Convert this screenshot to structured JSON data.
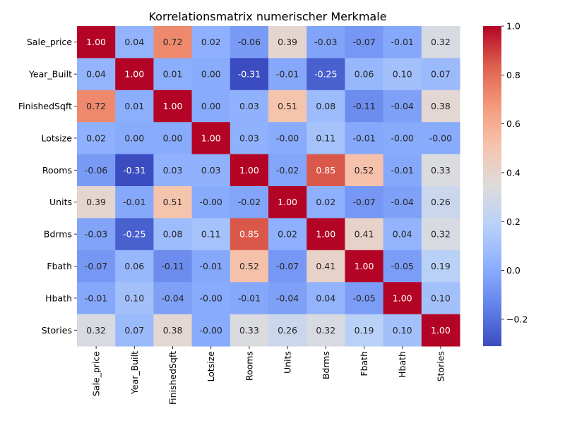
{
  "chart_data": {
    "type": "heatmap",
    "title": "Korrelationsmatrix numerischer Merkmale",
    "rows": [
      "Sale_price",
      "Year_Built",
      "FinishedSqft",
      "Lotsize",
      "Rooms",
      "Units",
      "Bdrms",
      "Fbath",
      "Hbath",
      "Stories"
    ],
    "columns": [
      "Sale_price",
      "Year_Built",
      "FinishedSqft",
      "Lotsize",
      "Rooms",
      "Units",
      "Bdrms",
      "Fbath",
      "Hbath",
      "Stories"
    ],
    "values": [
      [
        1.0,
        0.04,
        0.72,
        0.02,
        -0.06,
        0.39,
        -0.03,
        -0.07,
        -0.01,
        0.32
      ],
      [
        0.04,
        1.0,
        0.01,
        0.0,
        -0.31,
        -0.01,
        -0.25,
        0.06,
        0.1,
        0.07
      ],
      [
        0.72,
        0.01,
        1.0,
        0.0,
        0.03,
        0.51,
        0.08,
        -0.11,
        -0.04,
        0.38
      ],
      [
        0.02,
        0.0,
        0.0,
        1.0,
        0.03,
        -0.0,
        0.11,
        -0.01,
        -0.0,
        -0.0
      ],
      [
        -0.06,
        -0.31,
        0.03,
        0.03,
        1.0,
        -0.02,
        0.85,
        0.52,
        -0.01,
        0.33
      ],
      [
        0.39,
        -0.01,
        0.51,
        -0.0,
        -0.02,
        1.0,
        0.02,
        -0.07,
        -0.04,
        0.26
      ],
      [
        -0.03,
        -0.25,
        0.08,
        0.11,
        0.85,
        0.02,
        1.0,
        0.41,
        0.04,
        0.32
      ],
      [
        -0.07,
        0.06,
        -0.11,
        -0.01,
        0.52,
        -0.07,
        0.41,
        1.0,
        -0.05,
        0.19
      ],
      [
        -0.01,
        0.1,
        -0.04,
        -0.0,
        -0.01,
        -0.04,
        0.04,
        -0.05,
        1.0,
        0.1
      ],
      [
        0.32,
        0.07,
        0.38,
        -0.0,
        0.33,
        0.26,
        0.32,
        0.19,
        0.1,
        1.0
      ]
    ],
    "value_labels": [
      [
        "1.00",
        "0.04",
        "0.72",
        "0.02",
        "-0.06",
        "0.39",
        "-0.03",
        "-0.07",
        "-0.01",
        "0.32"
      ],
      [
        "0.04",
        "1.00",
        "0.01",
        "0.00",
        "-0.31",
        "-0.01",
        "-0.25",
        "0.06",
        "0.10",
        "0.07"
      ],
      [
        "0.72",
        "0.01",
        "1.00",
        "0.00",
        "0.03",
        "0.51",
        "0.08",
        "-0.11",
        "-0.04",
        "0.38"
      ],
      [
        "0.02",
        "0.00",
        "0.00",
        "1.00",
        "0.03",
        "-0.00",
        "0.11",
        "-0.01",
        "-0.00",
        "-0.00"
      ],
      [
        "-0.06",
        "-0.31",
        "0.03",
        "0.03",
        "1.00",
        "-0.02",
        "0.85",
        "0.52",
        "-0.01",
        "0.33"
      ],
      [
        "0.39",
        "-0.01",
        "0.51",
        "-0.00",
        "-0.02",
        "1.00",
        "0.02",
        "-0.07",
        "-0.04",
        "0.26"
      ],
      [
        "-0.03",
        "-0.25",
        "0.08",
        "0.11",
        "0.85",
        "0.02",
        "1.00",
        "0.41",
        "0.04",
        "0.32"
      ],
      [
        "-0.07",
        "0.06",
        "-0.11",
        "-0.01",
        "0.52",
        "-0.07",
        "0.41",
        "1.00",
        "-0.05",
        "0.19"
      ],
      [
        "-0.01",
        "0.10",
        "-0.04",
        "-0.00",
        "-0.01",
        "-0.04",
        "0.04",
        "-0.05",
        "1.00",
        "0.10"
      ],
      [
        "0.32",
        "0.07",
        "0.38",
        "-0.00",
        "0.33",
        "0.26",
        "0.32",
        "0.19",
        "0.10",
        "1.00"
      ]
    ],
    "colormap": "coolwarm",
    "color_range": [
      -0.31,
      1.0
    ],
    "colorbar_ticks": [
      -0.2,
      0.0,
      0.2,
      0.4,
      0.6,
      0.8,
      1.0
    ],
    "colorbar_tick_labels": [
      "−0.2",
      "0.0",
      "0.2",
      "0.4",
      "0.6",
      "0.8",
      "1.0"
    ]
  }
}
